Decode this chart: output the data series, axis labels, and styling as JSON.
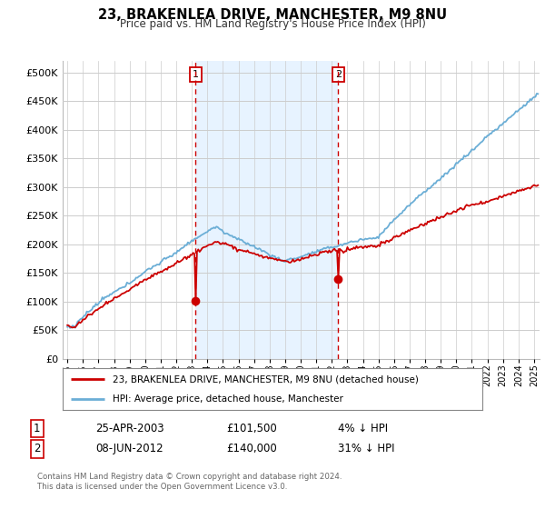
{
  "title": "23, BRAKENLEA DRIVE, MANCHESTER, M9 8NU",
  "subtitle": "Price paid vs. HM Land Registry's House Price Index (HPI)",
  "background_color": "#ffffff",
  "plot_bg_color": "#ffffff",
  "shade_color": "#ddeeff",
  "hpi_color": "#6baed6",
  "price_color": "#cc0000",
  "marker1_price": 101500,
  "marker2_price": 140000,
  "ylim": [
    0,
    520000
  ],
  "yticks": [
    0,
    50000,
    100000,
    150000,
    200000,
    250000,
    300000,
    350000,
    400000,
    450000,
    500000
  ],
  "legend_line1": "23, BRAKENLEA DRIVE, MANCHESTER, M9 8NU (detached house)",
  "legend_line2": "HPI: Average price, detached house, Manchester",
  "table_row1": [
    "1",
    "25-APR-2003",
    "£101,500",
    "4% ↓ HPI"
  ],
  "table_row2": [
    "2",
    "08-JUN-2012",
    "£140,000",
    "31% ↓ HPI"
  ],
  "footer": "Contains HM Land Registry data © Crown copyright and database right 2024.\nThis data is licensed under the Open Government Licence v3.0.",
  "xstart": 1995.0,
  "xend": 2025.25
}
